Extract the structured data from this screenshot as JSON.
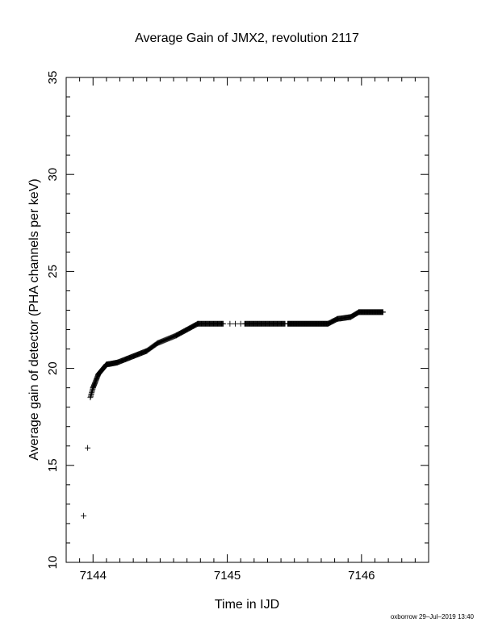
{
  "chart_data": {
    "type": "scatter",
    "title": "Average Gain of JMX2, revolution 2117",
    "xlabel": "Time in IJD",
    "ylabel": "Average gain of detector (PHA channels per keV)",
    "xlim": [
      7143.8,
      7146.5
    ],
    "ylim": [
      10,
      35
    ],
    "x_ticks": [
      7144,
      7145,
      7146
    ],
    "x_tick_labels": [
      "7144",
      "7145",
      "7146"
    ],
    "y_ticks": [
      10,
      15,
      20,
      25,
      30,
      35
    ],
    "y_tick_labels": [
      "10",
      "15",
      "20",
      "25",
      "30",
      "35"
    ],
    "grid": false,
    "marker": "plus",
    "series": [
      {
        "segments": [
          {
            "x": [
              7143.93,
              7143.96
            ],
            "y": [
              12.4,
              15.9
            ],
            "step": 0.03
          },
          {
            "x": [
              7143.98,
              7144.0
            ],
            "y": [
              18.5,
              19.0
            ],
            "step": 0.0025
          },
          {
            "x": [
              7144.0,
              7144.04
            ],
            "y": [
              19.0,
              19.7
            ],
            "step": 0.0025
          },
          {
            "x": [
              7144.04,
              7144.1
            ],
            "y": [
              19.7,
              20.2
            ],
            "step": 0.0025
          },
          {
            "x": [
              7144.1,
              7144.18
            ],
            "y": [
              20.2,
              20.3
            ],
            "step": 0.004
          },
          {
            "x": [
              7144.18,
              7144.4
            ],
            "y": [
              20.3,
              20.9
            ],
            "step": 0.005
          },
          {
            "x": [
              7144.4,
              7144.48
            ],
            "y": [
              20.9,
              21.3
            ],
            "step": 0.006
          },
          {
            "x": [
              7144.48,
              7144.62
            ],
            "y": [
              21.3,
              21.7
            ],
            "step": 0.006
          },
          {
            "x": [
              7144.62,
              7144.78
            ],
            "y": [
              21.7,
              22.3
            ],
            "step": 0.005
          },
          {
            "x": [
              7144.78,
              7144.97
            ],
            "y": [
              22.3,
              22.3
            ],
            "step": 0.005
          },
          {
            "x": [
              7145.13,
              7145.43
            ],
            "y": [
              22.3,
              22.3
            ],
            "step": 0.005
          },
          {
            "x": [
              7145.45,
              7145.75
            ],
            "y": [
              22.3,
              22.3
            ],
            "step": 0.004
          },
          {
            "x": [
              7145.75,
              7145.82
            ],
            "y": [
              22.3,
              22.55
            ],
            "step": 0.005
          },
          {
            "x": [
              7145.82,
              7145.92
            ],
            "y": [
              22.55,
              22.65
            ],
            "step": 0.005
          },
          {
            "x": [
              7145.92,
              7145.98
            ],
            "y": [
              22.65,
              22.9
            ],
            "step": 0.005
          },
          {
            "x": [
              7145.98,
              7146.16
            ],
            "y": [
              22.9,
              22.9
            ],
            "step": 0.004
          }
        ],
        "points": [
          [
            7145.02,
            22.3
          ],
          [
            7145.06,
            22.3
          ],
          [
            7145.1,
            22.3
          ]
        ]
      }
    ]
  },
  "footer": {
    "credit": "oxborrow 29–Jul–2019 13:40"
  }
}
